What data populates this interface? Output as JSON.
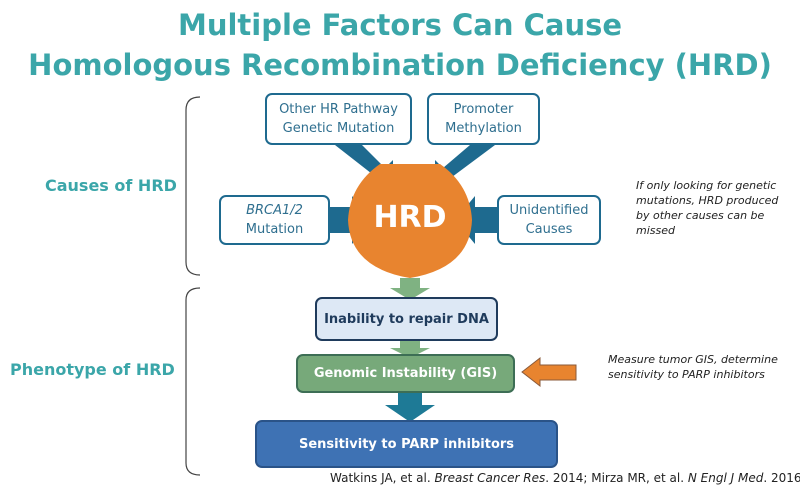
{
  "title": {
    "line1": "Multiple Factors Can Cause",
    "line2": "Homologous Recombination Deficiency (HRD)"
  },
  "sections": {
    "causes": "Causes of HRD",
    "phenotype": "Phenotype of HRD"
  },
  "causes": {
    "other_hr": "Other HR Pathway Genetic Mutation",
    "promoter": "Promoter Methylation",
    "brca": "BRCA1/2",
    "brca_sub": "Mutation",
    "unidentified": "Unidentified Causes",
    "center": "HRD"
  },
  "phenotype": {
    "step1": "Inability to repair DNA",
    "step2": "Genomic Instability (GIS)",
    "step3": "Sensitivity to PARP inhibitors"
  },
  "notes": {
    "genetic": "If only looking for genetic mutations, HRD produced by other causes can be missed",
    "gis": "Measure tumor GIS, determine sensitivity to PARP inhibitors"
  },
  "citation": {
    "a": "Watkins JA, et al. ",
    "a_journal": "Breast Cancer Res",
    "a_rest": ". 2014; Mirza MR, et al. ",
    "b_journal": "N Engl J Med",
    "b_rest": ". 2016."
  },
  "colors": {
    "teal": "#3ba6a9",
    "orange": "#e8842f",
    "arrow_blue": "#1e6a8f",
    "green": "#77a97a",
    "blue": "#3e72b4"
  }
}
